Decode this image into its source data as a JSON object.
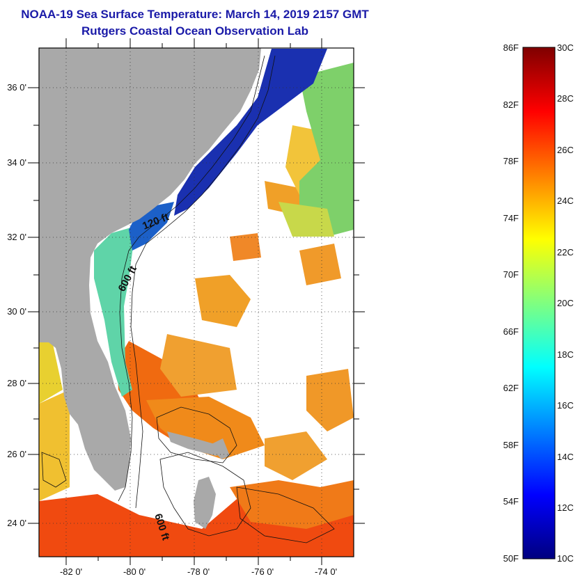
{
  "header": {
    "title": "NOAA-19 Sea Surface Temperature:  March 14, 2019 2157 GMT",
    "subtitle": "Rutgers Coastal Ocean Observation Lab"
  },
  "map": {
    "lat_ticks": [
      "36 0'",
      "34 0'",
      "32 0'",
      "30 0'",
      "28 0'",
      "26 0'",
      "24 0'"
    ],
    "lon_ticks": [
      "-82 0'",
      "-80 0'",
      "-78 0'",
      "-76 0'",
      "-74 0'"
    ],
    "lat_range": [
      23,
      37
    ],
    "lon_range": [
      -83,
      -73
    ],
    "contour_labels": [
      "120 ft",
      "600 ft",
      "600 ft"
    ],
    "colors": {
      "land": "#a9a9a9",
      "cloud": "#ffffff",
      "frame": "#000000"
    }
  },
  "colorbar": {
    "fahrenheit": [
      "86F",
      "82F",
      "78F",
      "74F",
      "70F",
      "66F",
      "62F",
      "58F",
      "54F",
      "50F"
    ],
    "celsius": [
      "30C",
      "28C",
      "26C",
      "24C",
      "22C",
      "20C",
      "18C",
      "16C",
      "14C",
      "12C",
      "10C"
    ],
    "range_f": [
      50,
      86
    ],
    "range_c": [
      10,
      30
    ]
  }
}
